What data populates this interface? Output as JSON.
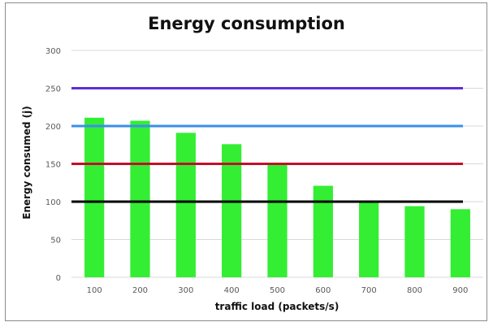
{
  "chart_data": {
    "type": "bar",
    "title": "Energy consumption",
    "xlabel": "traffic load (packets/s)",
    "ylabel": "Energy consumed (j)",
    "categories": [
      "100",
      "200",
      "300",
      "400",
      "500",
      "600",
      "700",
      "800",
      "900"
    ],
    "values": [
      211,
      207,
      191,
      176,
      149,
      121,
      99,
      94,
      90
    ],
    "bar_color": "#33ee33",
    "ylim": [
      0,
      300
    ],
    "yticks": [
      "0",
      "50",
      "100",
      "150",
      "200",
      "250",
      "300"
    ],
    "grid": true,
    "legend": "none",
    "reference_lines": [
      {
        "value": 250,
        "color": "#5b2fd6"
      },
      {
        "value": 200,
        "color": "#3a8fe8"
      },
      {
        "value": 150,
        "color": "#c0102a"
      },
      {
        "value": 100,
        "color": "#000000"
      }
    ]
  }
}
